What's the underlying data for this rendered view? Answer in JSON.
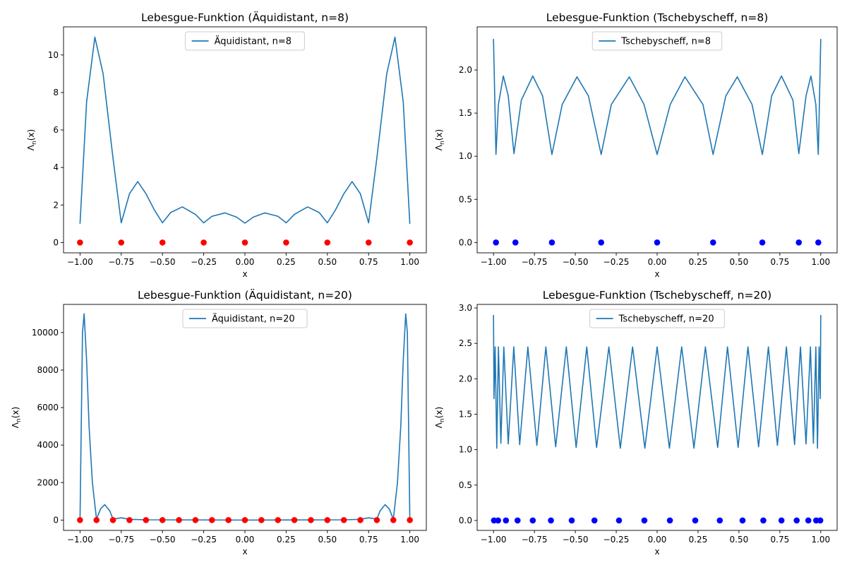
{
  "chart_data": [
    {
      "type": "line",
      "title": "Lebesgue-Funktion (Äquidistant, n=8)",
      "xlabel": "x",
      "ylabel_base": "Λ",
      "ylabel_sub": "n",
      "ylabel_paren": "(x)",
      "xlim": [
        -1.1,
        1.1
      ],
      "ylim": [
        -0.55,
        11.5
      ],
      "xticks": [
        -1.0,
        -0.75,
        -0.5,
        -0.25,
        0.0,
        0.25,
        0.5,
        0.75,
        1.0
      ],
      "xtick_labels": [
        "−1.00",
        "−0.75",
        "−0.50",
        "−0.25",
        "0.00",
        "0.25",
        "0.50",
        "0.75",
        "1.00"
      ],
      "yticks": [
        0,
        2,
        4,
        6,
        8,
        10
      ],
      "ytick_labels": [
        "0",
        "2",
        "4",
        "6",
        "8",
        "10"
      ],
      "legend": "upper center",
      "series": [
        {
          "name": "Äquidistant, n=8",
          "color": "#1f77b4",
          "x": [
            -1.0,
            -0.96,
            -0.91,
            -0.86,
            -0.8,
            -0.75,
            -0.7,
            -0.65,
            -0.6,
            -0.55,
            -0.5,
            -0.45,
            -0.38,
            -0.3,
            -0.25,
            -0.2,
            -0.12,
            -0.05,
            0.0,
            0.05,
            0.12,
            0.2,
            0.25,
            0.3,
            0.38,
            0.45,
            0.5,
            0.55,
            0.6,
            0.65,
            0.7,
            0.75,
            0.8,
            0.86,
            0.91,
            0.96,
            1.0
          ],
          "y": [
            1.0,
            7.5,
            10.95,
            9.0,
            4.5,
            1.05,
            2.6,
            3.25,
            2.6,
            1.75,
            1.05,
            1.6,
            1.9,
            1.5,
            1.05,
            1.4,
            1.58,
            1.35,
            1.03,
            1.35,
            1.58,
            1.4,
            1.05,
            1.5,
            1.9,
            1.6,
            1.05,
            1.75,
            2.6,
            3.25,
            2.6,
            1.05,
            4.5,
            9.0,
            10.95,
            7.5,
            1.0
          ]
        }
      ],
      "nodes": {
        "color": "#ff0000",
        "x": [
          -1.0,
          -0.75,
          -0.5,
          -0.25,
          0.0,
          0.25,
          0.5,
          0.75,
          1.0
        ],
        "y": [
          0,
          0,
          0,
          0,
          0,
          0,
          0,
          0,
          0
        ]
      }
    },
    {
      "type": "line",
      "title": "Lebesgue-Funktion (Tschebyscheff, n=8)",
      "xlabel": "x",
      "ylabel_base": "Λ",
      "ylabel_sub": "n",
      "ylabel_paren": "(x)",
      "xlim": [
        -1.1,
        1.1
      ],
      "ylim": [
        -0.12,
        2.5
      ],
      "xticks": [
        -1.0,
        -0.75,
        -0.5,
        -0.25,
        0.0,
        0.25,
        0.5,
        0.75,
        1.0
      ],
      "xtick_labels": [
        "−1.00",
        "−0.75",
        "−0.50",
        "−0.25",
        "0.00",
        "0.25",
        "0.50",
        "0.75",
        "1.00"
      ],
      "yticks": [
        0.0,
        0.5,
        1.0,
        1.5,
        2.0
      ],
      "ytick_labels": [
        "0.0",
        "0.5",
        "1.0",
        "1.5",
        "2.0"
      ],
      "legend": "upper center",
      "series": [
        {
          "name": "Tschebyscheff, n=8",
          "color": "#1f77b4",
          "x": [
            -1.0,
            -0.985,
            -0.97,
            -0.94,
            -0.91,
            -0.875,
            -0.83,
            -0.76,
            -0.7,
            -0.643,
            -0.58,
            -0.49,
            -0.42,
            -0.342,
            -0.28,
            -0.17,
            -0.08,
            0.0,
            0.08,
            0.17,
            0.28,
            0.342,
            0.42,
            0.49,
            0.58,
            0.643,
            0.7,
            0.76,
            0.83,
            0.866,
            0.91,
            0.94,
            0.97,
            0.985,
            1.0
          ],
          "y": [
            2.36,
            1.02,
            1.6,
            1.93,
            1.7,
            1.03,
            1.65,
            1.93,
            1.7,
            1.02,
            1.6,
            1.92,
            1.7,
            1.02,
            1.6,
            1.92,
            1.6,
            1.02,
            1.6,
            1.92,
            1.6,
            1.02,
            1.7,
            1.92,
            1.6,
            1.02,
            1.7,
            1.93,
            1.65,
            1.03,
            1.7,
            1.93,
            1.6,
            1.02,
            2.36
          ]
        }
      ],
      "nodes": {
        "color": "#0000ff",
        "x": [
          -0.985,
          -0.866,
          -0.643,
          -0.342,
          0.0,
          0.342,
          0.643,
          0.866,
          0.985
        ],
        "y": [
          0,
          0,
          0,
          0,
          0,
          0,
          0,
          0,
          0
        ]
      }
    },
    {
      "type": "line",
      "title": "Lebesgue-Funktion (Äquidistant, n=20)",
      "xlabel": "x",
      "ylabel_base": "Λ",
      "ylabel_sub": "n",
      "ylabel_paren": "(x)",
      "xlim": [
        -1.1,
        1.1
      ],
      "ylim": [
        -550,
        11500
      ],
      "xticks": [
        -1.0,
        -0.75,
        -0.5,
        -0.25,
        0.0,
        0.25,
        0.5,
        0.75,
        1.0
      ],
      "xtick_labels": [
        "−1.00",
        "−0.75",
        "−0.50",
        "−0.25",
        "0.00",
        "0.25",
        "0.50",
        "0.75",
        "1.00"
      ],
      "yticks": [
        0,
        2000,
        4000,
        6000,
        8000,
        10000
      ],
      "ytick_labels": [
        "0",
        "2000",
        "4000",
        "6000",
        "8000",
        "10000"
      ],
      "legend": "upper center",
      "series": [
        {
          "name": "Äquidistant, n=20",
          "color": "#1f77b4",
          "x": [
            -1.0,
            -0.985,
            -0.975,
            -0.96,
            -0.945,
            -0.925,
            -0.9,
            -0.875,
            -0.85,
            -0.82,
            -0.8,
            -0.75,
            -0.7,
            -0.6,
            0.0,
            0.6,
            0.7,
            0.75,
            0.8,
            0.82,
            0.85,
            0.875,
            0.9,
            0.925,
            0.945,
            0.96,
            0.975,
            0.985,
            1.0
          ],
          "y": [
            0,
            10000,
            11000,
            8500,
            5000,
            2000,
            50,
            600,
            820,
            500,
            50,
            120,
            40,
            15,
            1,
            15,
            40,
            120,
            50,
            500,
            820,
            600,
            50,
            2000,
            5000,
            8500,
            11000,
            10000,
            0
          ]
        }
      ],
      "nodes": {
        "color": "#ff0000",
        "x": [
          -1.0,
          -0.9,
          -0.8,
          -0.7,
          -0.6,
          -0.5,
          -0.4,
          -0.3,
          -0.2,
          -0.1,
          0.0,
          0.1,
          0.2,
          0.3,
          0.4,
          0.5,
          0.6,
          0.7,
          0.8,
          0.9,
          1.0
        ],
        "y": [
          0,
          0,
          0,
          0,
          0,
          0,
          0,
          0,
          0,
          0,
          0,
          0,
          0,
          0,
          0,
          0,
          0,
          0,
          0,
          0,
          0
        ]
      }
    },
    {
      "type": "line",
      "title": "Lebesgue-Funktion (Tschebyscheff, n=20)",
      "xlabel": "x",
      "ylabel_base": "Λ",
      "ylabel_sub": "n",
      "ylabel_paren": "(x)",
      "xlim": [
        -1.1,
        1.1
      ],
      "ylim": [
        -0.14,
        3.05
      ],
      "xticks": [
        -1.0,
        -0.75,
        -0.5,
        -0.25,
        0.0,
        0.25,
        0.5,
        0.75,
        1.0
      ],
      "xtick_labels": [
        "−1.00",
        "−0.75",
        "−0.50",
        "−0.25",
        "0.00",
        "0.25",
        "0.50",
        "0.75",
        "1.00"
      ],
      "yticks": [
        0.0,
        0.5,
        1.0,
        1.5,
        2.0,
        2.5,
        3.0
      ],
      "ytick_labels": [
        "0.0",
        "0.5",
        "1.0",
        "1.5",
        "2.0",
        "2.5",
        "3.0"
      ],
      "legend": "upper center",
      "series": [
        {
          "name": "Tschebyscheff, n=20",
          "color": "#1f77b4",
          "x": [
            -1.0,
            -0.997,
            -0.99,
            -0.98,
            -0.97,
            -0.955,
            -0.937,
            -0.91,
            -0.876,
            -0.84,
            -0.79,
            -0.735,
            -0.68,
            -0.62,
            -0.555,
            -0.495,
            -0.43,
            -0.37,
            -0.295,
            -0.225,
            -0.15,
            -0.075,
            0.0,
            0.075,
            0.15,
            0.225,
            0.295,
            0.37,
            0.43,
            0.495,
            0.555,
            0.62,
            0.68,
            0.735,
            0.79,
            0.84,
            0.876,
            0.91,
            0.937,
            0.955,
            0.97,
            0.98,
            0.99,
            0.997,
            1.0
          ],
          "y": [
            2.9,
            1.72,
            2.45,
            1.02,
            2.45,
            1.09,
            2.45,
            1.08,
            2.45,
            1.07,
            2.45,
            1.06,
            2.45,
            1.04,
            2.45,
            1.03,
            2.45,
            1.03,
            2.45,
            1.02,
            2.45,
            1.02,
            2.45,
            1.02,
            2.45,
            1.02,
            2.45,
            1.03,
            2.45,
            1.03,
            2.45,
            1.04,
            2.45,
            1.06,
            2.45,
            1.07,
            2.45,
            1.08,
            2.45,
            1.09,
            2.45,
            1.02,
            2.45,
            1.72,
            2.9
          ]
        }
      ],
      "nodes": {
        "color": "#0000ff",
        "x": [
          -0.997,
          -0.972,
          -0.924,
          -0.853,
          -0.76,
          -0.649,
          -0.522,
          -0.383,
          -0.233,
          -0.078,
          0.078,
          0.233,
          0.383,
          0.522,
          0.649,
          0.76,
          0.853,
          0.924,
          0.972,
          0.997
        ],
        "y": [
          0,
          0,
          0,
          0,
          0,
          0,
          0,
          0,
          0,
          0,
          0,
          0,
          0,
          0,
          0,
          0,
          0,
          0,
          0,
          0
        ]
      }
    }
  ]
}
